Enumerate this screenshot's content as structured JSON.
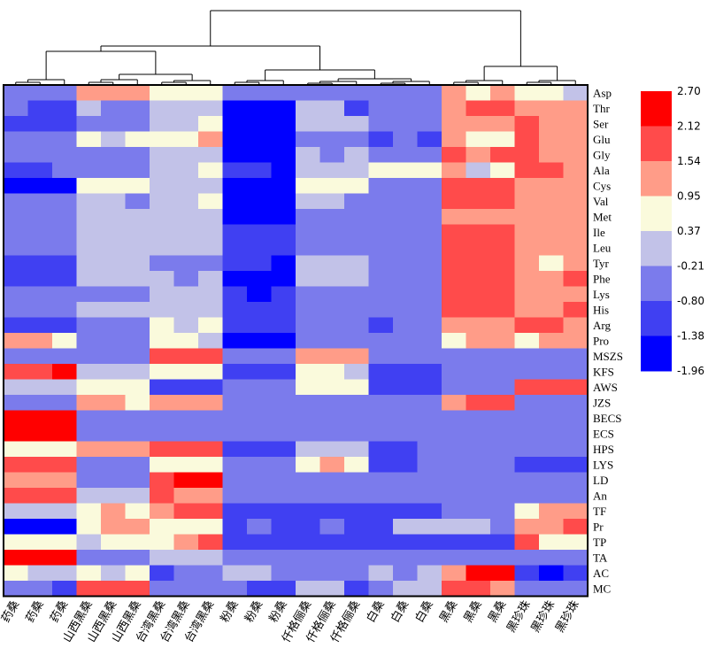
{
  "chart_data": {
    "type": "heatmap",
    "title": "",
    "xlabel": "",
    "ylabel": "",
    "columns": [
      "药桑",
      "药桑",
      "药桑",
      "山西黑桑",
      "山西黑桑",
      "山西黑桑",
      "台湾黑桑",
      "台湾黑桑",
      "台湾黑桑",
      "粉桑",
      "粉桑",
      "粉桑",
      "仟格俪桑",
      "仟格俪桑",
      "仟格俪桑",
      "白桑",
      "白桑",
      "白桑",
      "黑桑",
      "黑桑",
      "黑桑",
      "黑珍珠",
      "黑珍珠",
      "黑珍珠"
    ],
    "rows": [
      "Asp",
      "Thr",
      "Ser",
      "Glu",
      "Gly",
      "Ala",
      "Cys",
      "Val",
      "Met",
      "Ile",
      "Leu",
      "Tyr",
      "Phe",
      "Lys",
      "His",
      "Arg",
      "Pro",
      "MSZS",
      "KFS",
      "AWS",
      "JZS",
      "BECS",
      "ECS",
      "HPS",
      "LYS",
      "LD",
      "An",
      "TF",
      "Pr",
      "TP",
      "TA",
      "AC",
      "MC"
    ],
    "values": [
      [
        -0.8,
        -0.8,
        -0.8,
        1.2,
        1.2,
        1.2,
        0.6,
        0.6,
        0.6,
        -0.8,
        -0.8,
        -0.8,
        -0.8,
        -0.8,
        -0.5,
        -0.5,
        -0.5,
        -0.5,
        1.2,
        0.6,
        1.2,
        0.6,
        0.6,
        0.0
      ],
      [
        -0.5,
        -1.1,
        -1.1,
        0.0,
        -0.5,
        -0.5,
        0.0,
        0.0,
        0.0,
        -1.6,
        -1.6,
        -1.6,
        0.0,
        0.0,
        -1.1,
        -0.5,
        -0.5,
        -0.5,
        1.2,
        1.8,
        1.8,
        1.2,
        1.2,
        1.2
      ],
      [
        -1.1,
        -1.1,
        -1.1,
        -0.5,
        -0.5,
        -0.5,
        0.0,
        0.0,
        0.6,
        -1.6,
        -1.6,
        -1.6,
        0.0,
        0.0,
        0.0,
        -0.5,
        -0.5,
        -0.5,
        1.2,
        1.2,
        1.2,
        1.8,
        1.2,
        1.2
      ],
      [
        -0.5,
        -0.5,
        -0.5,
        0.6,
        0.0,
        0.6,
        0.6,
        0.6,
        1.2,
        -1.6,
        -1.6,
        -1.6,
        -0.5,
        -0.5,
        -0.5,
        -1.1,
        -0.5,
        -1.1,
        1.2,
        0.6,
        0.6,
        1.8,
        1.2,
        1.2
      ],
      [
        -0.5,
        -0.5,
        -0.5,
        -0.5,
        -0.5,
        -0.5,
        0.0,
        0.0,
        0.0,
        -1.6,
        -1.6,
        -1.6,
        0.0,
        -0.5,
        0.0,
        -0.5,
        -0.5,
        -0.5,
        1.8,
        1.2,
        1.8,
        1.8,
        1.2,
        1.2
      ],
      [
        -1.1,
        -1.1,
        -0.5,
        -0.5,
        -0.5,
        -0.5,
        0.0,
        0.0,
        0.6,
        -1.1,
        -1.1,
        -1.6,
        0.0,
        0.0,
        0.0,
        0.6,
        0.6,
        0.6,
        1.2,
        0.0,
        0.6,
        1.8,
        1.8,
        1.2
      ],
      [
        -1.6,
        -1.6,
        -1.6,
        0.6,
        0.6,
        0.6,
        0.0,
        0.0,
        0.0,
        -1.6,
        -1.6,
        -1.6,
        0.6,
        0.6,
        0.6,
        -0.5,
        -0.5,
        -0.5,
        1.8,
        1.8,
        1.8,
        1.2,
        1.2,
        1.2
      ],
      [
        -0.5,
        -0.5,
        -0.5,
        0.0,
        0.0,
        -0.5,
        0.0,
        0.0,
        0.6,
        -1.6,
        -1.6,
        -1.6,
        0.0,
        0.0,
        -0.5,
        -0.5,
        -0.5,
        -0.5,
        1.8,
        1.8,
        1.8,
        1.2,
        1.2,
        1.2
      ],
      [
        -0.5,
        -0.5,
        -0.5,
        0.0,
        0.0,
        0.0,
        0.0,
        0.0,
        0.0,
        -1.6,
        -1.6,
        -1.6,
        -0.5,
        -0.5,
        -0.5,
        -0.5,
        -0.5,
        -0.5,
        1.2,
        1.2,
        1.2,
        1.2,
        1.2,
        1.2
      ],
      [
        -0.5,
        -0.5,
        -0.5,
        0.0,
        0.0,
        0.0,
        0.0,
        0.0,
        0.0,
        -1.1,
        -1.1,
        -1.1,
        -0.5,
        -0.5,
        -0.5,
        -0.5,
        -0.5,
        -0.5,
        1.8,
        1.8,
        1.8,
        1.2,
        1.2,
        1.2
      ],
      [
        -0.5,
        -0.5,
        -0.5,
        0.0,
        0.0,
        0.0,
        0.0,
        0.0,
        0.0,
        -1.1,
        -1.1,
        -1.1,
        -0.5,
        -0.5,
        -0.5,
        -0.5,
        -0.5,
        -0.5,
        1.8,
        1.8,
        1.8,
        1.2,
        1.2,
        1.2
      ],
      [
        -1.1,
        -1.1,
        -1.1,
        0.0,
        0.0,
        0.0,
        -0.5,
        -0.5,
        -0.5,
        -1.1,
        -1.1,
        -1.6,
        0.0,
        0.0,
        0.0,
        -0.5,
        -0.5,
        -0.5,
        1.8,
        1.8,
        1.8,
        1.2,
        0.6,
        1.2
      ],
      [
        -1.1,
        -1.1,
        -1.1,
        0.0,
        0.0,
        0.0,
        0.0,
        -0.5,
        0.0,
        -1.6,
        -1.6,
        -1.6,
        0.0,
        0.0,
        0.0,
        -0.5,
        -0.5,
        -0.5,
        1.8,
        1.8,
        1.8,
        1.2,
        1.2,
        1.8
      ],
      [
        -0.5,
        -0.5,
        -0.5,
        -0.5,
        -0.5,
        -0.5,
        0.0,
        0.0,
        0.0,
        -1.1,
        -1.6,
        -1.1,
        -0.5,
        -0.5,
        -0.5,
        -0.5,
        -0.5,
        -0.5,
        1.8,
        1.8,
        1.8,
        1.2,
        1.2,
        1.2
      ],
      [
        -0.5,
        -0.5,
        -0.5,
        0.0,
        0.0,
        0.0,
        0.0,
        0.0,
        0.0,
        -1.1,
        -1.1,
        -1.1,
        -0.5,
        -0.5,
        -0.5,
        -0.5,
        -0.5,
        -0.5,
        1.8,
        1.8,
        1.8,
        1.2,
        1.2,
        1.8
      ],
      [
        -1.1,
        -1.1,
        -1.1,
        -0.5,
        -0.5,
        -0.5,
        0.6,
        0.0,
        0.6,
        -1.1,
        -1.1,
        -1.1,
        -0.5,
        -0.5,
        -0.5,
        -1.1,
        -0.5,
        -0.5,
        1.2,
        1.2,
        1.2,
        1.8,
        1.8,
        1.2
      ],
      [
        1.2,
        1.2,
        0.6,
        -0.5,
        -0.5,
        -0.5,
        0.6,
        0.6,
        0.0,
        -1.6,
        -1.6,
        -1.6,
        -0.5,
        -0.5,
        -0.5,
        -0.5,
        -0.5,
        -0.5,
        0.6,
        1.2,
        1.2,
        0.6,
        1.2,
        1.2
      ],
      [
        -0.5,
        -0.5,
        -0.5,
        -0.5,
        -0.5,
        -0.5,
        1.8,
        1.8,
        1.8,
        -0.5,
        -0.5,
        -0.5,
        1.2,
        1.2,
        1.2,
        -0.5,
        -0.5,
        -0.5,
        -0.5,
        -0.5,
        -0.5,
        -0.5,
        -0.5,
        -0.5
      ],
      [
        1.8,
        1.8,
        2.7,
        0.0,
        0.0,
        0.0,
        0.6,
        0.6,
        0.6,
        -1.1,
        -1.1,
        -1.1,
        0.6,
        0.6,
        0.0,
        -1.1,
        -1.1,
        -1.1,
        -0.5,
        -0.5,
        -0.5,
        -0.5,
        -0.5,
        -0.5
      ],
      [
        0.0,
        0.0,
        0.0,
        0.6,
        0.6,
        0.6,
        -1.1,
        -1.1,
        -1.1,
        -0.5,
        -0.5,
        -0.5,
        0.6,
        0.6,
        0.6,
        -1.1,
        -1.1,
        -1.1,
        -0.5,
        -0.5,
        -0.5,
        1.8,
        1.8,
        1.8
      ],
      [
        -0.5,
        -0.5,
        -0.5,
        1.2,
        1.2,
        0.6,
        1.2,
        1.2,
        1.2,
        -0.5,
        -0.5,
        -0.5,
        -0.5,
        -0.5,
        -0.5,
        -0.5,
        -0.5,
        -0.5,
        1.2,
        1.8,
        1.8,
        -0.5,
        -0.5,
        -0.5
      ],
      [
        2.7,
        2.7,
        2.7,
        -0.5,
        -0.5,
        -0.5,
        -0.5,
        -0.5,
        -0.5,
        -0.5,
        -0.5,
        -0.5,
        -0.5,
        -0.5,
        -0.5,
        -0.5,
        -0.5,
        -0.5,
        -0.5,
        -0.5,
        -0.5,
        -0.5,
        -0.5,
        -0.5
      ],
      [
        2.7,
        2.7,
        2.7,
        -0.5,
        -0.5,
        -0.5,
        -0.5,
        -0.5,
        -0.5,
        -0.5,
        -0.5,
        -0.5,
        -0.5,
        -0.5,
        -0.5,
        -0.5,
        -0.5,
        -0.5,
        -0.5,
        -0.5,
        -0.5,
        -0.5,
        -0.5,
        -0.5
      ],
      [
        0.6,
        0.6,
        0.6,
        1.2,
        1.2,
        1.2,
        1.8,
        1.8,
        1.8,
        -1.1,
        -1.1,
        -1.1,
        0.0,
        0.0,
        0.0,
        -1.1,
        -1.1,
        -0.5,
        -0.5,
        -0.5,
        -0.5,
        -0.5,
        -0.5,
        -0.5
      ],
      [
        1.8,
        1.8,
        1.8,
        -0.5,
        -0.5,
        -0.5,
        0.6,
        0.6,
        0.6,
        -0.5,
        -0.5,
        -0.5,
        0.6,
        1.2,
        0.6,
        -1.1,
        -1.1,
        -0.5,
        -0.5,
        -0.5,
        -0.5,
        -1.1,
        -1.1,
        -1.1
      ],
      [
        1.2,
        1.2,
        1.2,
        -0.5,
        -0.5,
        -0.5,
        1.8,
        2.7,
        2.7,
        -0.5,
        -0.5,
        -0.5,
        -0.5,
        -0.5,
        -0.5,
        -0.5,
        -0.5,
        -0.5,
        -0.5,
        -0.5,
        -0.5,
        -0.5,
        -0.5,
        -0.5
      ],
      [
        1.8,
        1.8,
        1.8,
        0.0,
        0.0,
        0.0,
        1.8,
        1.2,
        1.2,
        -0.5,
        -0.5,
        -0.5,
        -0.5,
        -0.5,
        -0.5,
        -0.5,
        -0.5,
        -0.5,
        -0.5,
        -0.5,
        -0.5,
        -0.5,
        -0.5,
        -0.5
      ],
      [
        0.0,
        0.0,
        0.0,
        0.6,
        1.2,
        0.6,
        1.2,
        1.8,
        1.8,
        -1.1,
        -1.1,
        -1.1,
        -1.1,
        -1.1,
        -1.1,
        -1.1,
        -1.1,
        -1.1,
        -0.5,
        -0.5,
        -0.5,
        0.6,
        1.2,
        1.2
      ],
      [
        -1.6,
        -1.6,
        -1.6,
        0.6,
        1.2,
        1.2,
        0.6,
        0.6,
        0.6,
        -1.1,
        -0.5,
        -1.1,
        -1.1,
        -0.5,
        -1.1,
        -1.1,
        0.0,
        0.0,
        0.0,
        0.0,
        -0.5,
        1.2,
        1.2,
        1.8
      ],
      [
        0.6,
        0.6,
        0.6,
        0.0,
        0.6,
        0.6,
        0.6,
        1.2,
        1.8,
        -1.1,
        -1.1,
        -1.1,
        -1.1,
        -1.1,
        -1.1,
        -1.1,
        -1.1,
        -1.1,
        -1.1,
        -1.1,
        -1.1,
        1.8,
        0.6,
        0.6
      ],
      [
        2.7,
        2.7,
        2.7,
        -0.5,
        -0.5,
        -0.5,
        0.0,
        0.0,
        0.0,
        -0.5,
        -0.5,
        -0.5,
        -0.5,
        -0.5,
        -0.5,
        -0.5,
        -0.5,
        -0.5,
        -0.5,
        -0.5,
        -0.5,
        -0.5,
        -0.5,
        -0.5
      ],
      [
        0.6,
        0.0,
        0.0,
        0.6,
        0.0,
        0.6,
        -1.1,
        -0.5,
        -0.5,
        0.0,
        0.0,
        -0.5,
        -0.5,
        -0.5,
        -0.5,
        0.0,
        -0.5,
        0.0,
        1.2,
        2.7,
        2.7,
        -1.1,
        -1.6,
        -1.1
      ],
      [
        -0.5,
        -0.5,
        -1.1,
        1.8,
        1.8,
        1.8,
        -0.5,
        -0.5,
        -0.5,
        -0.5,
        -1.1,
        -1.1,
        0.0,
        0.0,
        -1.1,
        -0.5,
        0.0,
        0.0,
        1.8,
        1.8,
        1.2,
        -0.5,
        -0.5,
        -0.5
      ]
    ],
    "color_scale": {
      "ticks": [
        "2.70",
        "2.12",
        "1.54",
        "0.95",
        "0.37",
        "-0.21",
        "-0.80",
        "-1.38",
        "-1.96"
      ],
      "bands": [
        "#ff0000",
        "#ff4b4b",
        "#ff9c88",
        "#fafadc",
        "#c2c2e8",
        "#7b7bec",
        "#4040f2",
        "#0000ff"
      ],
      "min": -1.96,
      "max": 2.7
    },
    "column_dendrogram": true,
    "legend_placement": "right"
  }
}
